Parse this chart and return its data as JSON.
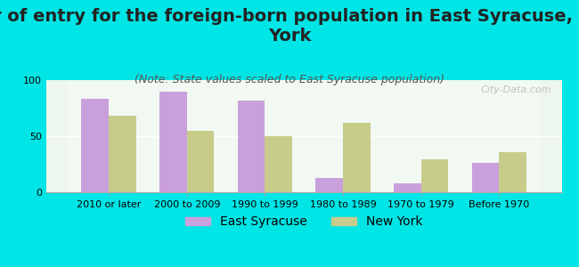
{
  "title": "Year of entry for the foreign-born population in East Syracuse, New\nYork",
  "subtitle": "(Note: State values scaled to East Syracuse population)",
  "categories": [
    "2010 or later",
    "2000 to 2009",
    "1990 to 1999",
    "1980 to 1989",
    "1970 to 1979",
    "Before 1970"
  ],
  "east_syracuse": [
    83,
    90,
    82,
    13,
    8,
    26
  ],
  "new_york": [
    68,
    55,
    50,
    62,
    29,
    36
  ],
  "east_syracuse_color": "#c9a0dc",
  "new_york_color": "#c8cc8a",
  "background_color": "#00e5e5",
  "ylim": [
    0,
    100
  ],
  "yticks": [
    0,
    50,
    100
  ],
  "bar_width": 0.35,
  "title_fontsize": 14,
  "subtitle_fontsize": 9,
  "legend_fontsize": 10,
  "tick_fontsize": 8,
  "watermark": "City-Data.com"
}
